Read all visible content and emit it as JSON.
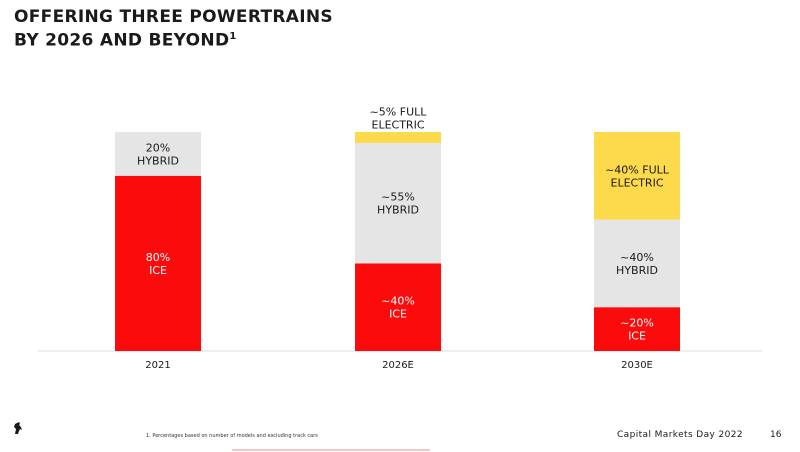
{
  "slide": {
    "title_line1": "OFFERING THREE POWERTRAINS",
    "title_line2": "BY 2026 AND BEYOND",
    "title_sup": "1",
    "footnote": "1. Percentages based on number of models and excluding track cars",
    "footer_text": "Capital Markets Day 2022",
    "page_number": "16"
  },
  "colors": {
    "ice": "#fb0b0b",
    "hybrid": "#e5e5e5",
    "electric": "#fdd94c",
    "axis": "#dddddd",
    "label_on_dark": "#ffffff",
    "label_on_light": "#1a1a1a"
  },
  "chart_data": {
    "type": "bar",
    "stacked": true,
    "categories": [
      "2021",
      "2026E",
      "2030E"
    ],
    "ylim": [
      0,
      100
    ],
    "series": [
      {
        "key": "ice",
        "values": [
          80,
          40,
          20
        ],
        "labels": [
          [
            "80%",
            "ICE"
          ],
          [
            "~40%",
            "ICE"
          ],
          [
            "~20%",
            "ICE"
          ]
        ]
      },
      {
        "key": "hybrid",
        "values": [
          20,
          55,
          40
        ],
        "labels": [
          [
            "20%",
            "HYBRID"
          ],
          [
            "~55%",
            "HYBRID"
          ],
          [
            "~40%",
            "HYBRID"
          ]
        ]
      },
      {
        "key": "electric",
        "values": [
          0,
          5,
          40
        ],
        "labels": [
          [],
          [
            "~5% FULL",
            "ELECTRIC"
          ],
          [
            "~40% FULL",
            "ELECTRIC"
          ]
        ]
      }
    ]
  }
}
